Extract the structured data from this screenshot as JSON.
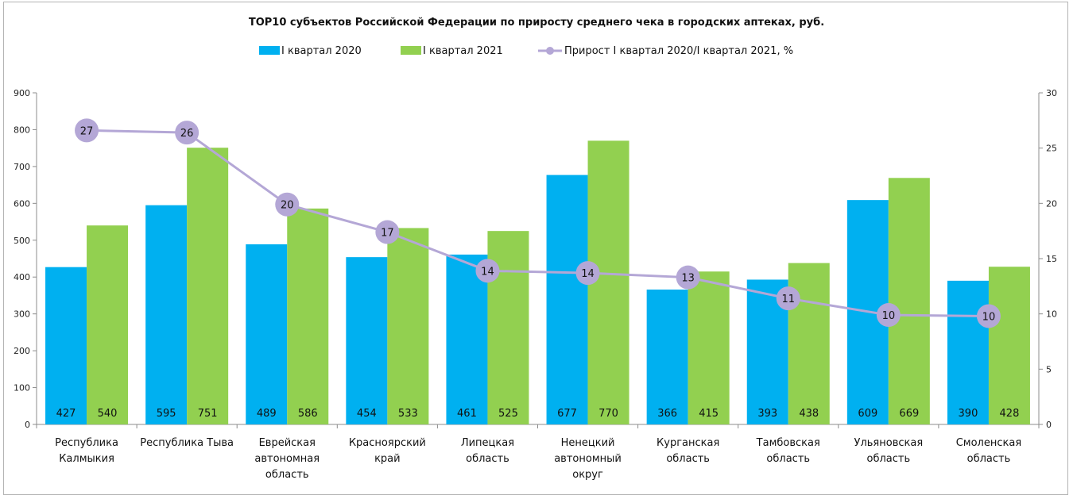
{
  "chart_data": {
    "type": "bar",
    "title": "TOP10 субъектов Российской Федерации по приросту среднего чека в городских аптеках, руб.",
    "categories": [
      [
        "Республика",
        "Калмыкия"
      ],
      [
        "Республика Тыва"
      ],
      [
        "Еврейская",
        "автономная",
        "область"
      ],
      [
        "Красноярский",
        "край"
      ],
      [
        "Липецкая",
        "область"
      ],
      [
        "Ненецкий",
        "автономный",
        "округ"
      ],
      [
        "Курганская",
        "область"
      ],
      [
        "Тамбовская",
        "область"
      ],
      [
        "Ульяновская",
        "область"
      ],
      [
        "Смоленская",
        "область"
      ]
    ],
    "series": [
      {
        "name": "I квартал  2020",
        "type": "bar",
        "axis": "left",
        "color": "#00b0f0",
        "values": [
          427,
          595,
          489,
          454,
          461,
          677,
          366,
          393,
          609,
          390
        ]
      },
      {
        "name": "I квартал  2021",
        "type": "bar",
        "axis": "left",
        "color": "#92d050",
        "values": [
          540,
          751,
          586,
          533,
          525,
          770,
          415,
          438,
          669,
          428
        ]
      },
      {
        "name": "Прирост I квартал 2020/I квартал  2021, %",
        "type": "line",
        "axis": "right",
        "color": "#b4a7d6",
        "values": [
          26.6,
          26.4,
          19.9,
          17.4,
          13.9,
          13.7,
          13.3,
          11.4,
          9.9,
          9.8
        ],
        "labels": [
          "27",
          "26",
          "20",
          "17",
          "14",
          "14",
          "13",
          "11",
          "10",
          "10"
        ]
      }
    ],
    "y_left": {
      "min": 0,
      "max": 900,
      "ticks": [
        "0",
        "100",
        "200",
        "300",
        "400",
        "500",
        "600",
        "700",
        "800",
        "900"
      ]
    },
    "y_right": {
      "min": 0,
      "max": 30,
      "ticks": [
        "0",
        "5",
        "10",
        "15",
        "20",
        "25",
        "30"
      ]
    },
    "legend_position": "top",
    "grid": false
  }
}
